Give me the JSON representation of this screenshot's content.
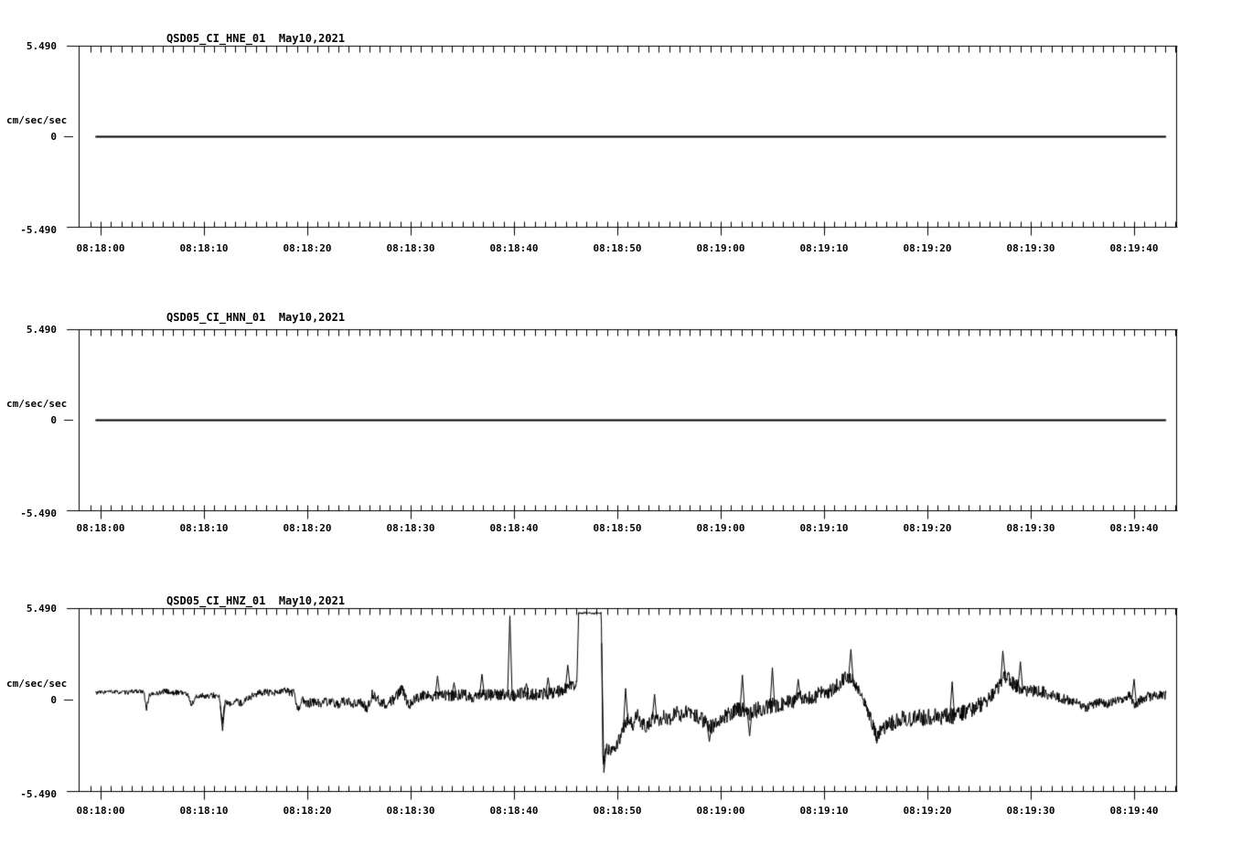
{
  "page": {
    "background": "#ffffff",
    "ink": "#000000"
  },
  "chart_data": [
    {
      "type": "line",
      "title": "QSD05_CI_HNE_01",
      "date": "May10,2021",
      "ylabel": "cm/sec/sec",
      "ylim": [
        -5.49,
        5.49
      ],
      "yticks": [
        {
          "value": 5.49,
          "label": "5.490"
        },
        {
          "value": 0,
          "label": "0"
        },
        {
          "value": -5.49,
          "label": "-5.490"
        }
      ],
      "x_minor_tick_seconds": 1,
      "xticks": [
        {
          "t": 0,
          "label": "08:18:00"
        },
        {
          "t": 10,
          "label": "08:18:10"
        },
        {
          "t": 20,
          "label": "08:18:20"
        },
        {
          "t": 30,
          "label": "08:18:30"
        },
        {
          "t": 40,
          "label": "08:18:40"
        },
        {
          "t": 50,
          "label": "08:18:50"
        },
        {
          "t": 60,
          "label": "08:19:00"
        },
        {
          "t": 70,
          "label": "08:19:10"
        },
        {
          "t": 80,
          "label": "08:19:20"
        },
        {
          "t": 90,
          "label": "08:19:30"
        },
        {
          "t": 100,
          "label": "08:19:40"
        }
      ],
      "series": [
        {
          "name": "QSD05_CI_HNE_01",
          "start_t": -0.5,
          "end_t": 103.1,
          "points": [
            [
              -0.5,
              0
            ],
            [
              103.1,
              0
            ]
          ],
          "noise_amp": [
            [
              -0.5,
              0
            ],
            [
              103.1,
              0
            ]
          ],
          "spikes": []
        }
      ]
    },
    {
      "type": "line",
      "title": "QSD05_CI_HNN_01",
      "date": "May10,2021",
      "ylabel": "cm/sec/sec",
      "ylim": [
        -5.49,
        5.49
      ],
      "yticks": [
        {
          "value": 5.49,
          "label": "5.490"
        },
        {
          "value": 0,
          "label": "0"
        },
        {
          "value": -5.49,
          "label": "-5.490"
        }
      ],
      "x_minor_tick_seconds": 1,
      "xticks": [
        {
          "t": 0,
          "label": "08:18:00"
        },
        {
          "t": 10,
          "label": "08:18:10"
        },
        {
          "t": 20,
          "label": "08:18:20"
        },
        {
          "t": 30,
          "label": "08:18:30"
        },
        {
          "t": 40,
          "label": "08:18:40"
        },
        {
          "t": 50,
          "label": "08:18:50"
        },
        {
          "t": 60,
          "label": "08:19:00"
        },
        {
          "t": 70,
          "label": "08:19:10"
        },
        {
          "t": 80,
          "label": "08:19:20"
        },
        {
          "t": 90,
          "label": "08:19:30"
        },
        {
          "t": 100,
          "label": "08:19:40"
        }
      ],
      "series": [
        {
          "name": "QSD05_CI_HNN_01",
          "start_t": -0.5,
          "end_t": 103.1,
          "points": [
            [
              -0.5,
              0
            ],
            [
              103.1,
              0
            ]
          ],
          "noise_amp": [
            [
              -0.5,
              0
            ],
            [
              103.1,
              0
            ]
          ],
          "spikes": []
        }
      ]
    },
    {
      "type": "line",
      "title": "QSD05_CI_HNZ_01",
      "date": "May10,2021",
      "ylabel": "cm/sec/sec",
      "ylim": [
        -5.49,
        5.49
      ],
      "yticks": [
        {
          "value": 5.49,
          "label": "5.490"
        },
        {
          "value": 0,
          "label": "0"
        },
        {
          "value": -5.49,
          "label": "-5.490"
        }
      ],
      "x_minor_tick_seconds": 1,
      "xticks": [
        {
          "t": 0,
          "label": "08:18:00"
        },
        {
          "t": 10,
          "label": "08:18:10"
        },
        {
          "t": 20,
          "label": "08:18:20"
        },
        {
          "t": 30,
          "label": "08:18:30"
        },
        {
          "t": 40,
          "label": "08:18:40"
        },
        {
          "t": 50,
          "label": "08:18:50"
        },
        {
          "t": 60,
          "label": "08:19:00"
        },
        {
          "t": 70,
          "label": "08:19:10"
        },
        {
          "t": 80,
          "label": "08:19:20"
        },
        {
          "t": 90,
          "label": "08:19:30"
        },
        {
          "t": 100,
          "label": "08:19:40"
        }
      ],
      "series": [
        {
          "name": "QSD05_CI_HNZ_01",
          "start_t": -0.5,
          "end_t": 103.1,
          "points": [
            [
              -0.5,
              0.45
            ],
            [
              1,
              0.5
            ],
            [
              2.5,
              0.45
            ],
            [
              3.5,
              0.55
            ],
            [
              4.2,
              0.45
            ],
            [
              4.45,
              -0.55
            ],
            [
              4.7,
              0.3
            ],
            [
              5.5,
              0.4
            ],
            [
              6.3,
              0.55
            ],
            [
              7,
              0.4
            ],
            [
              7.7,
              0.5
            ],
            [
              8.4,
              0.35
            ],
            [
              8.8,
              -0.3
            ],
            [
              9.2,
              0.15
            ],
            [
              9.8,
              0.3
            ],
            [
              10.4,
              0.2
            ],
            [
              11,
              0.3
            ],
            [
              11.5,
              0.15
            ],
            [
              11.75,
              -1.4
            ],
            [
              12.05,
              -0.15
            ],
            [
              12.5,
              -0.3
            ],
            [
              13,
              -0.05
            ],
            [
              13.6,
              -0.2
            ],
            [
              14.2,
              0.1
            ],
            [
              15,
              0.35
            ],
            [
              15.8,
              0.5
            ],
            [
              16.6,
              0.35
            ],
            [
              17.3,
              0.5
            ],
            [
              18,
              0.55
            ],
            [
              18.7,
              0.4
            ],
            [
              19.1,
              -0.6
            ],
            [
              19.5,
              0.1
            ],
            [
              19.9,
              -0.3
            ],
            [
              20.5,
              -0.1
            ],
            [
              21.2,
              -0.2
            ],
            [
              22,
              -0.1
            ],
            [
              22.8,
              -0.25
            ],
            [
              23.6,
              -0.1
            ],
            [
              24.4,
              -0.2
            ],
            [
              25.1,
              -0.1
            ],
            [
              25.8,
              -0.55
            ],
            [
              26.3,
              0.4
            ],
            [
              27,
              -0.1
            ],
            [
              27.7,
              -0.25
            ],
            [
              28.4,
              0.05
            ],
            [
              29.2,
              0.65
            ],
            [
              29.8,
              -0.3
            ],
            [
              30.5,
              0.1
            ],
            [
              31.2,
              0.3
            ],
            [
              32,
              0.2
            ],
            [
              33,
              0.3
            ],
            [
              34,
              0.25
            ],
            [
              35,
              0.35
            ],
            [
              36,
              0.2
            ],
            [
              37,
              0.35
            ],
            [
              38,
              0.3
            ],
            [
              39,
              0.35
            ],
            [
              40,
              0.3
            ],
            [
              41,
              0.4
            ],
            [
              42,
              0.3
            ],
            [
              43,
              0.4
            ],
            [
              44,
              0.45
            ],
            [
              44.8,
              0.6
            ],
            [
              45.4,
              0.9
            ],
            [
              45.9,
              0.8
            ],
            [
              46.1,
              1.3
            ],
            [
              46.25,
              5.2
            ],
            [
              47,
              5.25
            ],
            [
              47.7,
              5.2
            ],
            [
              48.45,
              5.2
            ],
            [
              48.6,
              -3.7
            ],
            [
              48.9,
              -2.9
            ],
            [
              49.4,
              -3.05
            ],
            [
              49.9,
              -2.7
            ],
            [
              50.3,
              -2.2
            ],
            [
              50.6,
              -1.7
            ],
            [
              51,
              -1.2
            ],
            [
              51.5,
              -1.5
            ],
            [
              51.9,
              -0.85
            ],
            [
              52.3,
              -1.4
            ],
            [
              52.9,
              -1.7
            ],
            [
              53.5,
              -0.95
            ],
            [
              54,
              -1.3
            ],
            [
              54.5,
              -0.9
            ],
            [
              55,
              -1.2
            ],
            [
              55.6,
              -0.75
            ],
            [
              56.2,
              -0.95
            ],
            [
              56.8,
              -0.55
            ],
            [
              57.4,
              -0.85
            ],
            [
              58,
              -1.1
            ],
            [
              58.6,
              -1.4
            ],
            [
              59.2,
              -1.6
            ],
            [
              59.8,
              -1.25
            ],
            [
              60.4,
              -0.95
            ],
            [
              61.2,
              -0.7
            ],
            [
              62,
              -0.5
            ],
            [
              62.7,
              -0.8
            ],
            [
              63.4,
              -0.6
            ],
            [
              64.2,
              -0.5
            ],
            [
              65,
              -0.35
            ],
            [
              65.8,
              -0.2
            ],
            [
              66.6,
              -0.1
            ],
            [
              67.4,
              0.05
            ],
            [
              68.2,
              0.15
            ],
            [
              69,
              0.25
            ],
            [
              70,
              0.4
            ],
            [
              70.8,
              0.55
            ],
            [
              71.5,
              1.0
            ],
            [
              72.2,
              1.45
            ],
            [
              72.8,
              1.15
            ],
            [
              73.4,
              0.5
            ],
            [
              74,
              -0.3
            ],
            [
              74.6,
              -1.3
            ],
            [
              75.1,
              -2.1
            ],
            [
              75.6,
              -1.9
            ],
            [
              76.2,
              -1.5
            ],
            [
              76.9,
              -1.3
            ],
            [
              77.6,
              -1.1
            ],
            [
              78.3,
              -1.15
            ],
            [
              79,
              -1.0
            ],
            [
              79.8,
              -1.1
            ],
            [
              80.5,
              -0.95
            ],
            [
              81.2,
              -1.05
            ],
            [
              82,
              -0.9
            ],
            [
              82.7,
              -1.0
            ],
            [
              83.4,
              -0.8
            ],
            [
              84.2,
              -0.55
            ],
            [
              85,
              -0.3
            ],
            [
              85.8,
              -0.05
            ],
            [
              86.5,
              0.4
            ],
            [
              87.2,
              1.1
            ],
            [
              87.5,
              1.5
            ],
            [
              87.9,
              1.2
            ],
            [
              88.5,
              0.9
            ],
            [
              89.1,
              0.7
            ],
            [
              89.8,
              0.55
            ],
            [
              90.4,
              0.6
            ],
            [
              91.1,
              0.5
            ],
            [
              91.9,
              0.3
            ],
            [
              92.6,
              0.15
            ],
            [
              93.3,
              0.05
            ],
            [
              94,
              -0.05
            ],
            [
              94.7,
              -0.25
            ],
            [
              95.3,
              -0.5
            ],
            [
              95.9,
              -0.3
            ],
            [
              96.6,
              -0.15
            ],
            [
              97.3,
              -0.25
            ],
            [
              98,
              -0.1
            ],
            [
              98.8,
              0
            ],
            [
              99.6,
              0.3
            ],
            [
              100.1,
              -0.35
            ],
            [
              100.6,
              0.05
            ],
            [
              101.3,
              0.2
            ],
            [
              102,
              0.25
            ],
            [
              102.6,
              0.35
            ],
            [
              103.1,
              0.3
            ]
          ],
          "noise_amp": [
            [
              -0.5,
              0.12
            ],
            [
              4,
              0.13
            ],
            [
              9,
              0.18
            ],
            [
              14,
              0.2
            ],
            [
              19,
              0.25
            ],
            [
              20,
              0.28
            ],
            [
              26,
              0.3
            ],
            [
              30,
              0.33
            ],
            [
              44,
              0.38
            ],
            [
              45.9,
              0.3
            ],
            [
              46.3,
              0.06
            ],
            [
              48.4,
              0.06
            ],
            [
              48.7,
              0.35
            ],
            [
              51,
              0.4
            ],
            [
              58,
              0.45
            ],
            [
              63,
              0.5
            ],
            [
              71,
              0.45
            ],
            [
              73.8,
              0.35
            ],
            [
              76,
              0.5
            ],
            [
              84,
              0.5
            ],
            [
              88,
              0.45
            ],
            [
              91.5,
              0.35
            ],
            [
              93,
              0.3
            ],
            [
              99,
              0.25
            ],
            [
              101,
              0.3
            ],
            [
              103.1,
              0.3
            ]
          ],
          "spikes": [
            [
              11.8,
              -1.85
            ],
            [
              32.6,
              1.45
            ],
            [
              34.2,
              1.05
            ],
            [
              36.9,
              1.55
            ],
            [
              39.6,
              5.05
            ],
            [
              41.2,
              1.0
            ],
            [
              43.3,
              1.35
            ],
            [
              45.2,
              2.1
            ],
            [
              48.7,
              -4.35
            ],
            [
              50.8,
              0.7
            ],
            [
              53.6,
              0.35
            ],
            [
              58.9,
              -2.5
            ],
            [
              62.1,
              1.5
            ],
            [
              62.8,
              -2.15
            ],
            [
              65,
              1.95
            ],
            [
              67.5,
              1.25
            ],
            [
              72.6,
              3.05
            ],
            [
              75.1,
              -2.6
            ],
            [
              82.4,
              1.1
            ],
            [
              87.3,
              2.95
            ],
            [
              89,
              2.3
            ],
            [
              100,
              1.25
            ]
          ]
        }
      ]
    }
  ]
}
